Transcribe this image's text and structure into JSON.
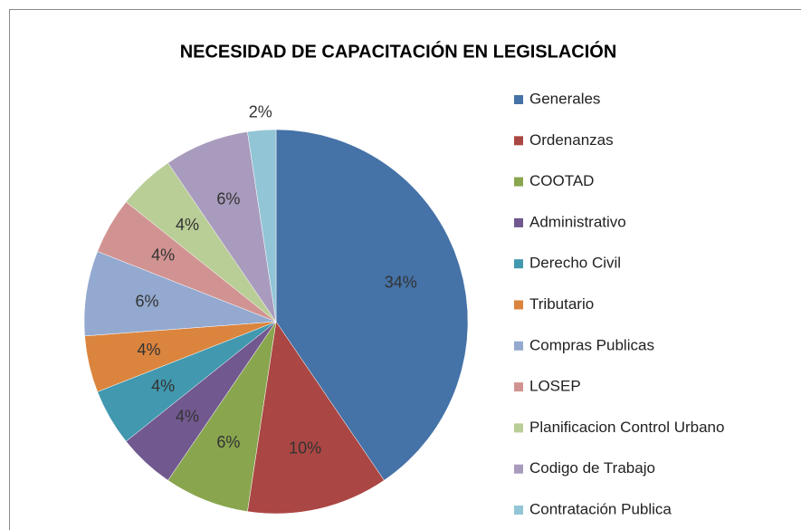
{
  "chart_data": {
    "type": "pie",
    "title": "NECESIDAD  DE CAPACITACIÓN EN LEGISLACIÓN",
    "categories": [
      "Generales",
      "Ordenanzas",
      "COOTAD",
      "Administrativo",
      "Derecho Civil",
      "Tributario",
      "Compras Publicas",
      "LOSEP",
      "Planificacion Control Urbano",
      "Codigo de Trabajo",
      "Contratación Publica"
    ],
    "values": [
      34,
      10,
      6,
      4,
      4,
      4,
      6,
      4,
      4,
      6,
      2
    ],
    "value_labels": [
      "34%",
      "10%",
      "6%",
      "4%",
      "4%",
      "4%",
      "6%",
      "4%",
      "4%",
      "6%",
      "2%"
    ],
    "colors": [
      "#4572a7",
      "#aa4643",
      "#89a54e",
      "#71588f",
      "#4198af",
      "#db843d",
      "#93a9cf",
      "#d19392",
      "#b9cd96",
      "#a99bbd",
      "#92c5d6"
    ],
    "legend": "right"
  }
}
